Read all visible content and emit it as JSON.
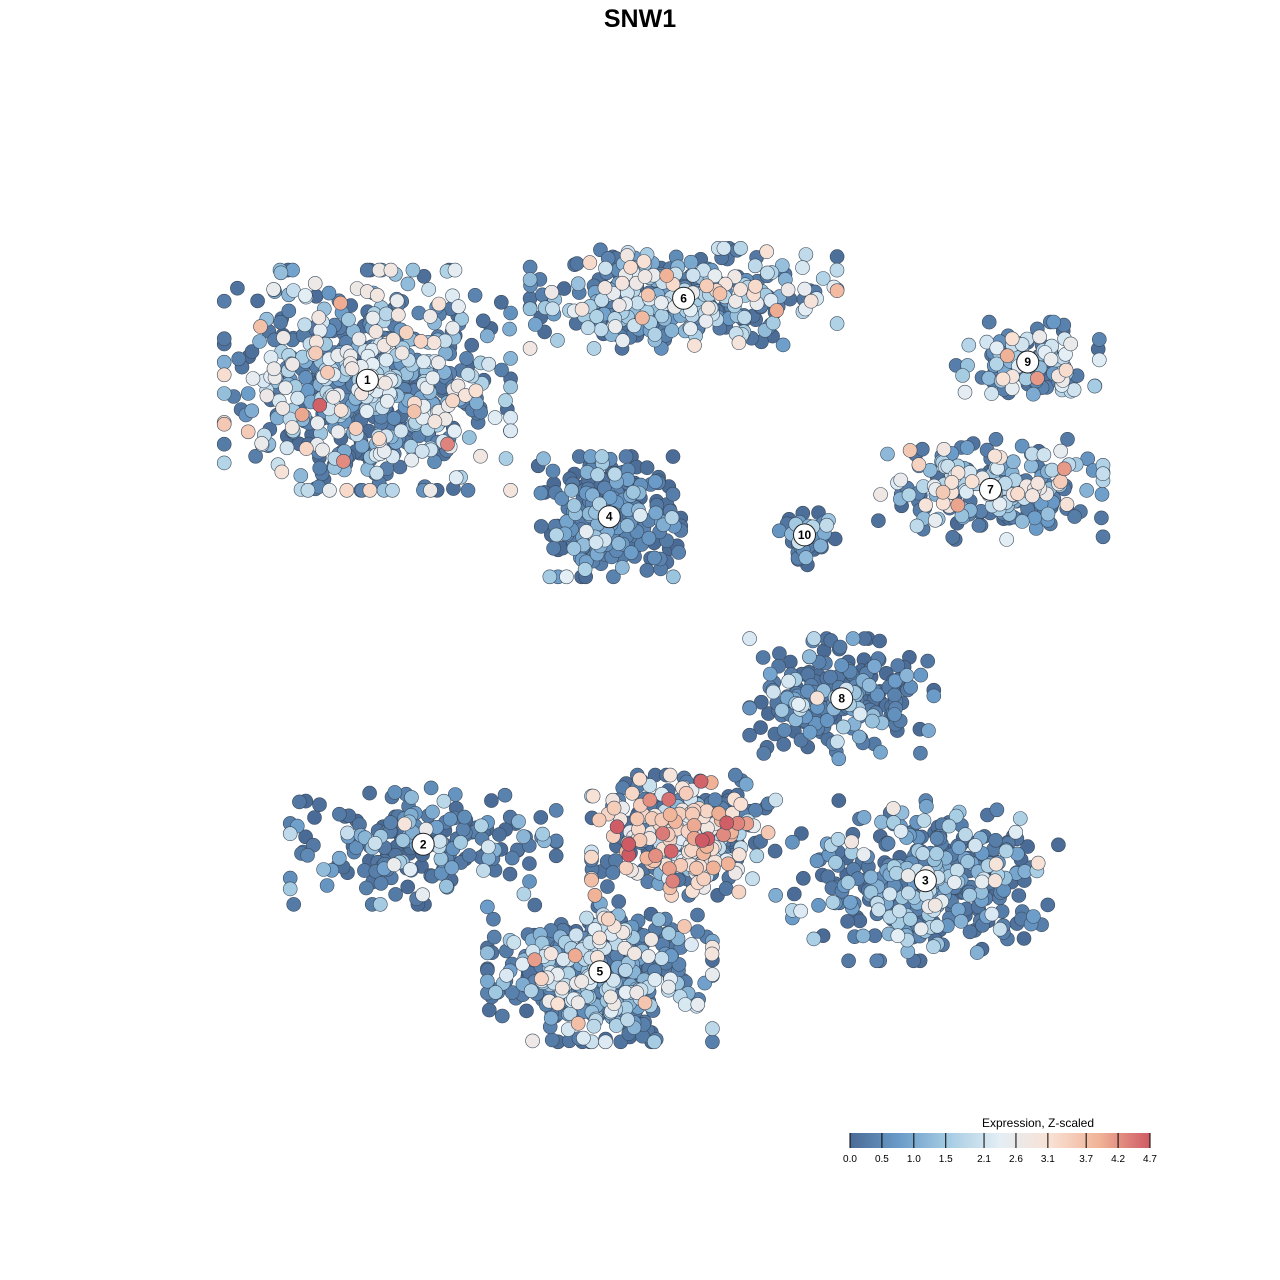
{
  "chart_data": {
    "type": "scatter",
    "title": "SNW1",
    "xlabel": "",
    "ylabel": "",
    "grid": false,
    "legend": {
      "title": "Expression, Z-scaled",
      "position": "bottom-right",
      "ticks": [
        "0.0",
        "0.5",
        "1.0",
        "1.5",
        "2.1",
        "2.6",
        "3.1",
        "3.7",
        "4.2",
        "4.7"
      ],
      "range": [
        0.0,
        4.7
      ],
      "colors": [
        "#4a6b96",
        "#6b9cc9",
        "#a7cde3",
        "#e4eef5",
        "#f9e1d4",
        "#f0b296",
        "#cf5a64"
      ]
    },
    "clusters": [
      {
        "label": "1",
        "x": 0.18,
        "y": 0.78,
        "spread_x": 0.14,
        "spread_y": 0.11,
        "n": 650,
        "mean": 1.7
      },
      {
        "label": "2",
        "x": 0.24,
        "y": 0.27,
        "spread_x": 0.13,
        "spread_y": 0.06,
        "n": 200,
        "mean": 0.7
      },
      {
        "label": "3",
        "x": 0.78,
        "y": 0.23,
        "spread_x": 0.13,
        "spread_y": 0.08,
        "n": 380,
        "mean": 1.0
      },
      {
        "label": "4",
        "x": 0.44,
        "y": 0.63,
        "spread_x": 0.07,
        "spread_y": 0.06,
        "n": 300,
        "mean": 0.4
      },
      {
        "label": "5",
        "x": 0.43,
        "y": 0.13,
        "spread_x": 0.11,
        "spread_y": 0.07,
        "n": 450,
        "mean": 1.5
      },
      {
        "label": "6",
        "x": 0.52,
        "y": 0.87,
        "spread_x": 0.15,
        "spread_y": 0.05,
        "n": 380,
        "mean": 1.6
      },
      {
        "label": "7",
        "x": 0.85,
        "y": 0.66,
        "spread_x": 0.11,
        "spread_y": 0.05,
        "n": 230,
        "mean": 1.8
      },
      {
        "label": "8",
        "x": 0.69,
        "y": 0.43,
        "spread_x": 0.09,
        "spread_y": 0.06,
        "n": 230,
        "mean": 0.5
      },
      {
        "label": "9",
        "x": 0.89,
        "y": 0.8,
        "spread_x": 0.07,
        "spread_y": 0.04,
        "n": 120,
        "mean": 1.6
      },
      {
        "label": "10",
        "x": 0.65,
        "y": 0.61,
        "spread_x": 0.03,
        "spread_y": 0.03,
        "n": 45,
        "mean": 0.5
      },
      {
        "label": "",
        "x": 0.52,
        "y": 0.28,
        "spread_x": 0.09,
        "spread_y": 0.06,
        "n": 380,
        "mean": 2.9
      }
    ]
  }
}
